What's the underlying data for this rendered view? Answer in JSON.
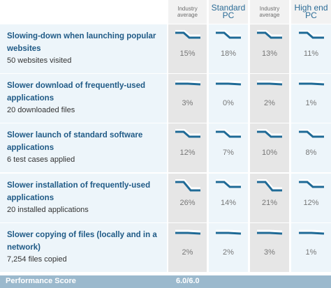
{
  "columns": [
    {
      "label_line1": "Industry",
      "label_line2": "average"
    },
    {
      "label_line1": "Standard",
      "label_line2": "PC"
    },
    {
      "label_line1": "Industry",
      "label_line2": "average"
    },
    {
      "label_line1": "High end",
      "label_line2": "PC"
    }
  ],
  "rows": [
    {
      "title_line1": "Slowing-down when launching popular",
      "title_line2": "websites",
      "subtitle": "50 websites visited",
      "values": [
        "15%",
        "18%",
        "13%",
        "11%"
      ],
      "trend": [
        "drop",
        "drop",
        "drop",
        "drop"
      ]
    },
    {
      "title_line1": "Slower download of frequently-used",
      "title_line2": "applications",
      "subtitle": "20 downloaded files",
      "values": [
        "3%",
        "0%",
        "2%",
        "1%"
      ],
      "trend": [
        "flat",
        "flat",
        "flat",
        "flat"
      ]
    },
    {
      "title_line1": "Slower launch of standard software",
      "title_line2": "applications",
      "subtitle": "6 test cases applied",
      "values": [
        "12%",
        "7%",
        "10%",
        "8%"
      ],
      "trend": [
        "drop",
        "drop",
        "drop",
        "drop"
      ]
    },
    {
      "title_line1": "Slower installation of frequently-used",
      "title_line2": "applications",
      "subtitle": "20 installed applications",
      "values": [
        "26%",
        "14%",
        "21%",
        "12%"
      ],
      "trend": [
        "bigdrop",
        "drop",
        "bigdrop",
        "drop"
      ]
    },
    {
      "title_line1": "Slower copying of files (locally and in a",
      "title_line2": "network)",
      "subtitle": "7,254 files copied",
      "values": [
        "2%",
        "2%",
        "3%",
        "1%"
      ],
      "trend": [
        "flat",
        "flat",
        "flat",
        "flat"
      ]
    }
  ],
  "footer": {
    "label": "Performance Score",
    "score": "6.0/6.0"
  },
  "colors": {
    "line": "#1f6a96",
    "shadow": "#ffffff"
  }
}
